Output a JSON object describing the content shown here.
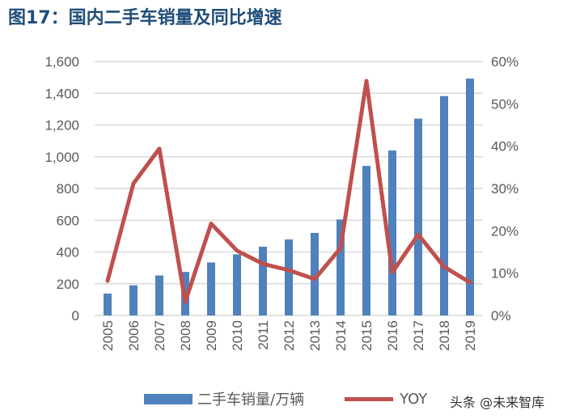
{
  "title": "图17：国内二手车销量及同比增速",
  "watermark": "头条 @未来智库",
  "chart_data": {
    "type": "bar+line",
    "title": "图17：国内二手车销量及同比增速",
    "categories": [
      "2005",
      "2006",
      "2007",
      "2008",
      "2009",
      "2010",
      "2011",
      "2012",
      "2013",
      "2014",
      "2015",
      "2016",
      "2017",
      "2018",
      "2019"
    ],
    "series": [
      {
        "name": "二手车销量/万辆",
        "type": "bar",
        "axis": "left",
        "color": "#4f81bd",
        "values": [
          138,
          190,
          252,
          274,
          334,
          385,
          433,
          479,
          520,
          605,
          942,
          1039,
          1240,
          1382,
          1492
        ]
      },
      {
        "name": "YOY",
        "type": "line",
        "axis": "right",
        "color": "#c0504d",
        "values": [
          8.2,
          31.2,
          39.4,
          3.2,
          21.7,
          15.3,
          12.2,
          10.7,
          8.6,
          15.9,
          55.4,
          10.2,
          19.1,
          11.5,
          7.8
        ]
      }
    ],
    "left_axis": {
      "ylim": [
        0,
        1600
      ],
      "ticks": [
        "0",
        "200",
        "400",
        "600",
        "800",
        "1,000",
        "1,200",
        "1,400",
        "1,600"
      ]
    },
    "right_axis": {
      "ylim": [
        0,
        60
      ],
      "ticks": [
        "0%",
        "10%",
        "20%",
        "30%",
        "40%",
        "50%",
        "60%"
      ]
    },
    "grid": true,
    "legend": "bottom"
  }
}
